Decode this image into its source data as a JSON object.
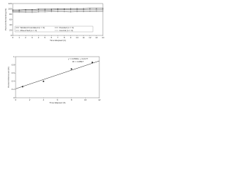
{
  "chart_data": [
    {
      "type": "line",
      "x_label": "Time Elapsed (h)",
      "y_label": "Percent Remaining (%)",
      "x": [
        0,
        1,
        2,
        3,
        4,
        5,
        6,
        7,
        8,
        9,
        10,
        11,
        12,
        13,
        14
      ],
      "xlim": [
        0,
        14
      ],
      "xticks": [
        0,
        1,
        2,
        3,
        4,
        5,
        6,
        7,
        8,
        9,
        10,
        11,
        12,
        13,
        14
      ],
      "ylim": [
        0,
        120
      ],
      "yticks": [
        0,
        20,
        40,
        60,
        80,
        100,
        120
      ],
      "series": [
        {
          "name": "Wetland Inundated (n = 3)",
          "color": "#333333",
          "values": [
            96,
            96,
            97,
            97,
            99,
            99,
            99,
            100,
            100,
            101,
            101,
            101,
            102,
            102,
            102
          ]
        },
        {
          "name": "Flooded (n = 3)",
          "color": "#555555",
          "values": [
            93,
            93,
            94,
            94,
            96,
            96,
            96,
            97,
            97,
            97,
            97,
            97,
            98,
            98,
            98
          ]
        },
        {
          "name": "Mixed Soil (n = 3)",
          "color": "#777777",
          "values": [
            90,
            90,
            89,
            89,
            91,
            92,
            92,
            92,
            91,
            91,
            92,
            92,
            92,
            93,
            93
          ]
        },
        {
          "name": "Control (n = 3)",
          "color": "#999999",
          "values": [
            87,
            87,
            87,
            86,
            88,
            88,
            89,
            89,
            89,
            88,
            89,
            89,
            90,
            90,
            90
          ]
        }
      ]
    },
    {
      "type": "scatter",
      "x_label": "Time Elapsed (h)",
      "y_label": "Percent Removed (%)",
      "equation": "y = 0.0566x + 0.2177",
      "r2": "R² = 0.8567",
      "trendline": {
        "slope": 0.0566,
        "intercept": 0.2177
      },
      "x": [
        1,
        4,
        8,
        11
      ],
      "values": [
        0.27,
        0.4,
        0.7,
        0.86
      ],
      "color": "#222222",
      "xlim": [
        0,
        12
      ],
      "xticks": [
        0,
        2,
        4,
        6,
        8,
        10,
        12
      ],
      "ylim": [
        0,
        1
      ],
      "yticks": [
        0,
        0.2,
        0.4,
        0.6,
        0.8,
        1
      ]
    }
  ]
}
